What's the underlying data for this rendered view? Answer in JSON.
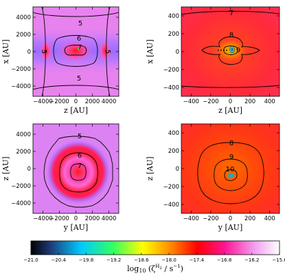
{
  "chart_data": [
    {
      "type": "heatmap",
      "xlabel": "z [AU]",
      "ylabel": "x [AU]",
      "xlim": [
        -5200,
        5200
      ],
      "ylim": [
        -5200,
        5200
      ],
      "xticks": [
        -4000,
        -2000,
        0,
        2000,
        4000
      ],
      "yticks": [
        -4000,
        -2000,
        0,
        2000,
        4000
      ],
      "xtick_labels": [
        "−4000",
        "−2000",
        "0",
        "2000",
        "4000"
      ],
      "ytick_labels": [
        "−4000",
        "−2000",
        "0",
        "2000",
        "4000"
      ],
      "contour_labels": [
        "5",
        "6",
        "7",
        "5",
        "5",
        "5"
      ]
    },
    {
      "type": "heatmap",
      "xlabel": "z [AU]",
      "ylabel": "x [AU]",
      "xlim": [
        -500,
        500
      ],
      "ylim": [
        -500,
        500
      ],
      "xticks": [
        -400,
        -200,
        0,
        200,
        400
      ],
      "yticks": [
        -400,
        -200,
        0,
        200,
        400
      ],
      "xtick_labels": [
        "−400",
        "−200",
        "0",
        "200",
        "400"
      ],
      "ytick_labels": [
        "−400",
        "−200",
        "0",
        "200",
        "400"
      ],
      "contour_labels": [
        "7",
        "8",
        "9"
      ]
    },
    {
      "type": "heatmap",
      "xlabel": "y [AU]",
      "ylabel": "z [AU]",
      "xlim": [
        -5200,
        5200
      ],
      "ylim": [
        -5200,
        5200
      ],
      "xticks": [
        -4000,
        -2000,
        0,
        2000,
        4000
      ],
      "yticks": [
        -4000,
        -2000,
        0,
        2000,
        4000
      ],
      "xtick_labels": [
        "−4000",
        "−2000",
        "0",
        "2000",
        "4000"
      ],
      "ytick_labels": [
        "−4000",
        "−2000",
        "0",
        "2000",
        "4000"
      ],
      "contour_labels": [
        "5",
        "6",
        "7"
      ]
    },
    {
      "type": "heatmap",
      "xlabel": "y [AU]",
      "ylabel": "z [AU]",
      "xlim": [
        -500,
        500
      ],
      "ylim": [
        -500,
        500
      ],
      "xticks": [
        -400,
        -200,
        0,
        200,
        400
      ],
      "yticks": [
        -400,
        -200,
        0,
        200,
        400
      ],
      "xtick_labels": [
        "−400",
        "−200",
        "0",
        "200",
        "400"
      ],
      "ytick_labels": [
        "−400",
        "−200",
        "0",
        "200",
        "400"
      ],
      "contour_labels": [
        "8",
        "9",
        "10"
      ]
    }
  ],
  "colorbar": {
    "label": "log10 (ζH2 / s−1)",
    "ticks": [
      -21.0,
      -20.4,
      -19.8,
      -19.2,
      -18.6,
      -18.0,
      -17.4,
      -16.8,
      -16.2,
      -15.6
    ],
    "tick_labels": [
      "−21.0",
      "−20.4",
      "−19.8",
      "−19.2",
      "−18.6",
      "−18.0",
      "−17.4",
      "−16.8",
      "−16.2",
      "−15.6"
    ],
    "range": [
      -21.0,
      -15.6
    ],
    "colormap": [
      "#000000",
      "#1e3c78",
      "#00c8ff",
      "#32ff64",
      "#ffff00",
      "#ff8c00",
      "#ff0000",
      "#ff1493",
      "#f0a0f0",
      "#ffffff"
    ]
  }
}
